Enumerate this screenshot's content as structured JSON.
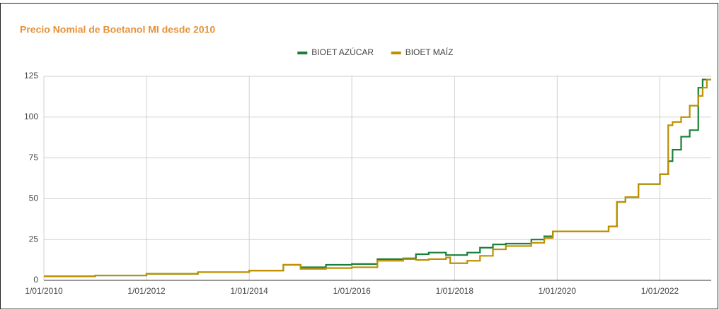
{
  "chart_data": {
    "type": "line",
    "step": true,
    "title": "Precio Nomial de Boetanol MI desde 2010",
    "x": [
      "2010-01-01",
      "2011-01-01",
      "2012-01-01",
      "2013-01-01",
      "2014-01-01",
      "2014-09-01",
      "2015-01-01",
      "2015-07-01",
      "2016-01-01",
      "2016-07-01",
      "2017-01-01",
      "2017-04-01",
      "2017-07-01",
      "2017-11-01",
      "2017-12-01",
      "2018-04-01",
      "2018-07-01",
      "2018-10-01",
      "2019-01-01",
      "2019-07-01",
      "2019-10-01",
      "2019-12-01",
      "2020-01-01",
      "2021-01-01",
      "2021-03-01",
      "2021-05-01",
      "2021-08-01",
      "2021-10-01",
      "2022-01-01",
      "2022-03-01",
      "2022-04-01",
      "2022-06-01",
      "2022-08-01",
      "2022-10-01",
      "2022-11-01",
      "2022-12-01",
      "2023-01-01"
    ],
    "series": [
      {
        "name": "BIOET AZÚCAR",
        "color": "#188038",
        "values": [
          2.5,
          3,
          4,
          5,
          6,
          9.5,
          8,
          9.5,
          10,
          13,
          13.5,
          16,
          17,
          15.5,
          15.5,
          17,
          20,
          22,
          22.5,
          25,
          27,
          30,
          30,
          33,
          48,
          51,
          59,
          59,
          65,
          73,
          80,
          88,
          92,
          118,
          123,
          123,
          123
        ]
      },
      {
        "name": "BIOET MAÍZ",
        "color": "#bf9000",
        "values": [
          2.5,
          3,
          4,
          5,
          6,
          9.5,
          7,
          7.5,
          8,
          12,
          13,
          12.5,
          13,
          14,
          10.5,
          12,
          15,
          19,
          21,
          23,
          26,
          30,
          30,
          33,
          48,
          51,
          59,
          59,
          65,
          95,
          97,
          100,
          107,
          113,
          118,
          123,
          123
        ]
      }
    ],
    "xlim": [
      "2010-01-01",
      "2023-01-01"
    ],
    "xticks": [
      {
        "value": "2010-01-01",
        "label": "1/01/2010"
      },
      {
        "value": "2012-01-01",
        "label": "1/01/2012"
      },
      {
        "value": "2014-01-01",
        "label": "1/01/2014"
      },
      {
        "value": "2016-01-01",
        "label": "1/01/2016"
      },
      {
        "value": "2018-01-01",
        "label": "1/01/2018"
      },
      {
        "value": "2020-01-01",
        "label": "1/01/2020"
      },
      {
        "value": "2022-01-01",
        "label": "1/01/2022"
      }
    ],
    "ylim": [
      0,
      125
    ],
    "yticks": [
      0,
      25,
      50,
      75,
      100,
      125
    ],
    "grid": true,
    "legend": "top"
  }
}
